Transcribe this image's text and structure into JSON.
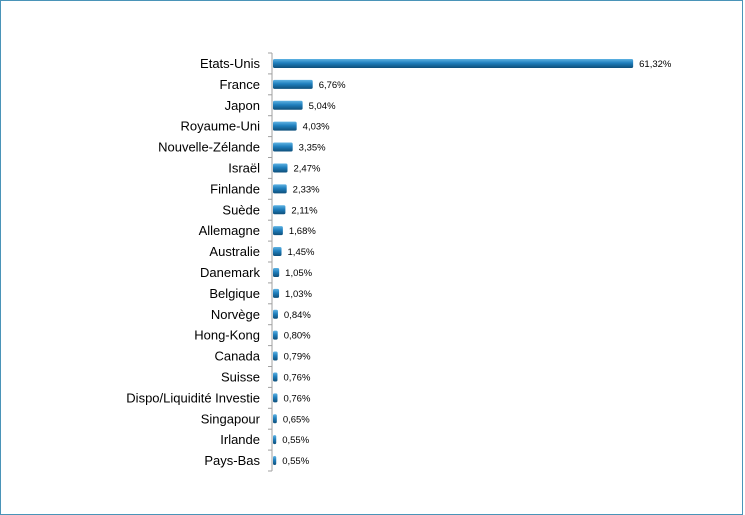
{
  "chart_data": {
    "type": "bar",
    "orientation": "horizontal",
    "categories": [
      "Etats-Unis",
      "France",
      "Japon",
      "Royaume-Uni",
      "Nouvelle-Zélande",
      "Israël",
      "Finlande",
      "Suède",
      "Allemagne",
      "Australie",
      "Danemark",
      "Belgique",
      "Norvège",
      "Hong-Kong",
      "Canada",
      "Suisse",
      "Dispo/Liquidité Investie",
      "Singapour",
      "Irlande",
      "Pays-Bas"
    ],
    "values": [
      61.32,
      6.76,
      5.04,
      4.03,
      3.35,
      2.47,
      2.33,
      2.11,
      1.68,
      1.45,
      1.05,
      1.03,
      0.84,
      0.8,
      0.79,
      0.76,
      0.76,
      0.65,
      0.55,
      0.55
    ],
    "value_labels": [
      "61,32%",
      "6,76%",
      "5,04%",
      "4,03%",
      "3,35%",
      "2,47%",
      "2,33%",
      "2,11%",
      "1,68%",
      "1,45%",
      "1,05%",
      "1,03%",
      "0,84%",
      "0,80%",
      "0,79%",
      "0,76%",
      "0,76%",
      "0,65%",
      "0,55%",
      "0,55%"
    ],
    "title": "",
    "xlabel": "",
    "ylabel": "",
    "xlim": [
      0,
      63
    ],
    "grid": false,
    "legend": "none",
    "bar_color": "#1a73a8"
  },
  "colors": {
    "border": "#4a94b8",
    "axis": "#a0a0a0",
    "bar_top": "#5fb3e3",
    "bar_mid": "#1f7fbd",
    "bar_bottom": "#0e4f7a"
  }
}
